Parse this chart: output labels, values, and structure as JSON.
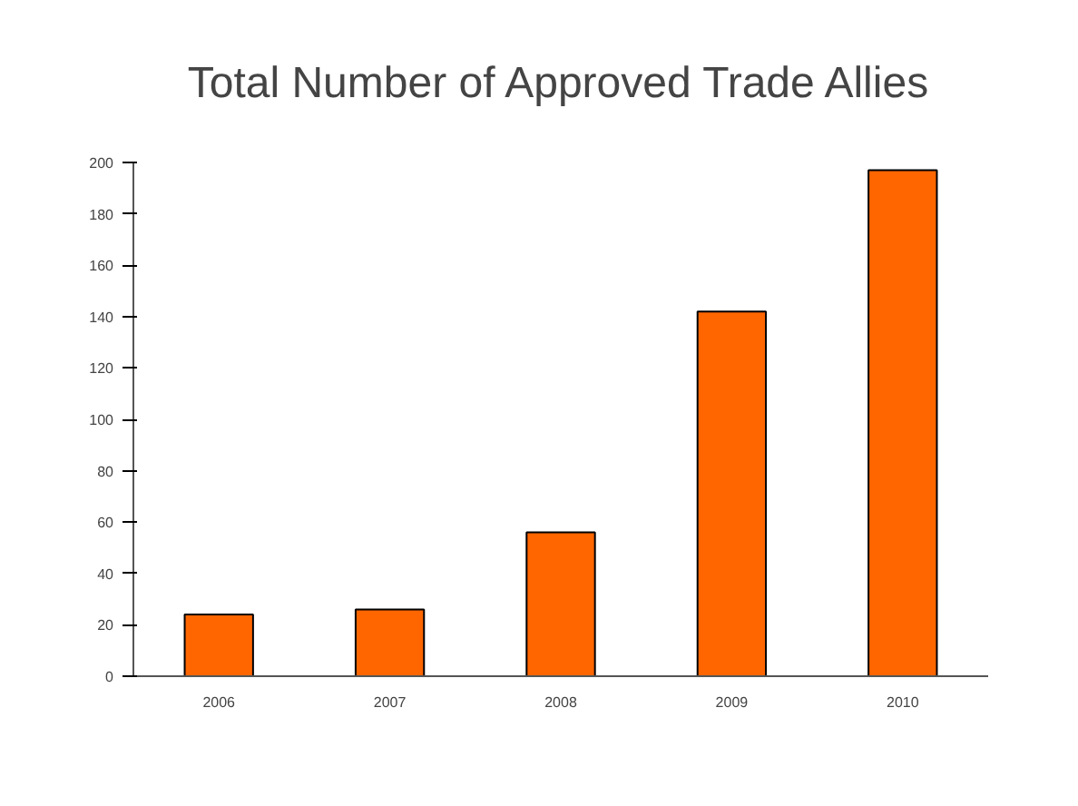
{
  "chart_data": {
    "type": "bar",
    "title": "Total Number of Approved Trade Allies",
    "categories": [
      "2006",
      "2007",
      "2008",
      "2009",
      "2010"
    ],
    "values": [
      24,
      26,
      56,
      142,
      197
    ],
    "color": "#ff6600",
    "ylim": [
      0,
      200
    ],
    "yticks": [
      0,
      20,
      40,
      60,
      80,
      100,
      120,
      140,
      160,
      180,
      200
    ],
    "grid": false
  }
}
